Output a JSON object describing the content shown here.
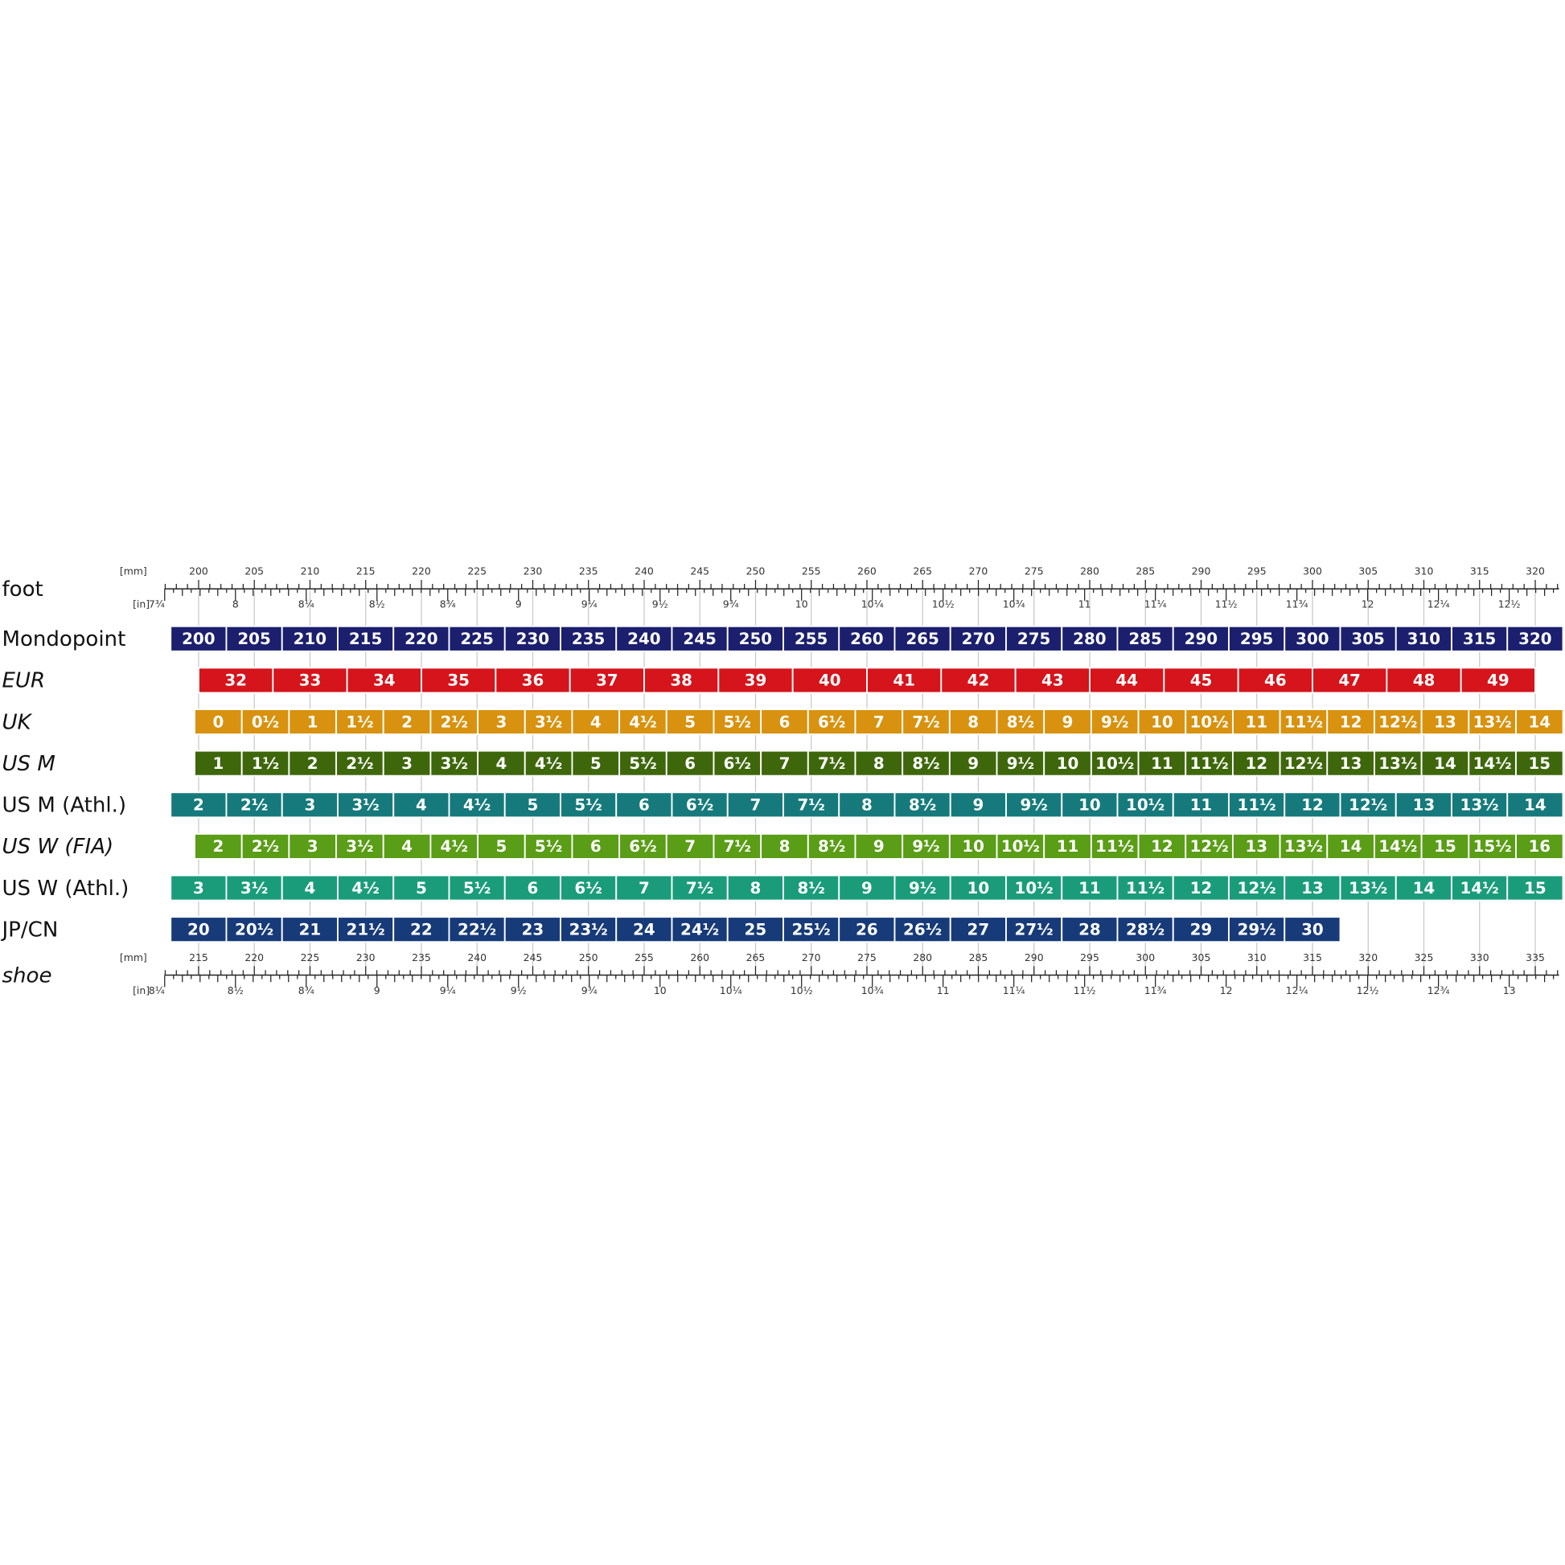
{
  "foot_scale": {
    "label": "foot",
    "mm_unit": "[mm]",
    "in_unit": "[in]",
    "mm_labels": [
      200,
      205,
      210,
      215,
      220,
      225,
      230,
      235,
      240,
      245,
      250,
      255,
      260,
      265,
      270,
      275,
      280,
      285,
      290,
      295,
      300,
      305,
      310,
      315,
      320
    ],
    "in_labels": [
      "7¾",
      8,
      "8¼",
      "8½",
      "8¾",
      9,
      "9¼",
      "9½",
      "9¾",
      10,
      "10¼",
      "10½",
      "10¾",
      11,
      "11¼",
      "11½",
      "11¾",
      12,
      "12¼",
      "12½"
    ]
  },
  "rows": [
    {
      "label": "Mondopoint",
      "color": "#1b1f6e",
      "cells": [
        200,
        205,
        210,
        215,
        220,
        225,
        230,
        235,
        240,
        245,
        250,
        255,
        260,
        265,
        270,
        275,
        280,
        285,
        290,
        295,
        300,
        305,
        310,
        315,
        320
      ]
    },
    {
      "label": "EUR",
      "color": "#d5141b",
      "cells": [
        32,
        33,
        34,
        35,
        36,
        37,
        38,
        39,
        40,
        41,
        42,
        43,
        44,
        45,
        46,
        47,
        48,
        49
      ]
    },
    {
      "label": "UK",
      "color": "#d8920f",
      "cells": [
        0,
        "0½",
        1,
        "1½",
        2,
        "2½",
        3,
        "3½",
        4,
        "4½",
        5,
        "5½",
        6,
        "6½",
        7,
        "7½",
        8,
        "8½",
        9,
        "9½",
        10,
        "10½",
        11,
        "11½",
        12,
        "12½",
        13,
        "13½",
        14
      ]
    },
    {
      "label": "US M",
      "color": "#3e670c",
      "cells": [
        1,
        "1½",
        2,
        "2½",
        3,
        "3½",
        4,
        "4½",
        5,
        "5½",
        6,
        "6½",
        7,
        "7½",
        8,
        "8½",
        9,
        "9½",
        10,
        "10½",
        11,
        "11½",
        12,
        "12½",
        13,
        "13½",
        14,
        "14½",
        15
      ]
    },
    {
      "label": "US M (Athl.)",
      "color": "#167a7c",
      "cells": [
        2,
        "2½",
        3,
        "3½",
        4,
        "4½",
        5,
        "5½",
        6,
        "6½",
        7,
        "7½",
        8,
        "8½",
        9,
        "9½",
        10,
        "10½",
        11,
        "11½",
        12,
        "12½",
        13,
        "13½",
        14
      ]
    },
    {
      "label": "US W (FIA)",
      "color": "#5a9d16",
      "cells": [
        2,
        "2½",
        3,
        "3½",
        4,
        "4½",
        5,
        "5½",
        6,
        "6½",
        7,
        "7½",
        8,
        "8½",
        9,
        "9½",
        10,
        "10½",
        11,
        "11½",
        12,
        "12½",
        13,
        "13½",
        14,
        "14½",
        15,
        "15½",
        16
      ]
    },
    {
      "label": "US W (Athl.)",
      "color": "#1a9c7a",
      "cells": [
        3,
        "3½",
        4,
        "4½",
        5,
        "5½",
        6,
        "6½",
        7,
        "7½",
        8,
        "8½",
        9,
        "9½",
        10,
        "10½",
        11,
        "11½",
        12,
        "12½",
        13,
        "13½",
        14,
        "14½",
        15
      ]
    },
    {
      "label": "JP/CN",
      "color": "#173a78",
      "cells": [
        20,
        "20½",
        21,
        "21½",
        22,
        "22½",
        23,
        "23½",
        24,
        "24½",
        25,
        "25½",
        26,
        "26½",
        27,
        "27½",
        28,
        "28½",
        29,
        "29½",
        30
      ]
    }
  ],
  "shoe_scale": {
    "label": "shoe",
    "mm_unit": "[mm]",
    "in_unit": "[in]",
    "mm_labels": [
      215,
      220,
      225,
      230,
      235,
      240,
      245,
      250,
      255,
      260,
      265,
      270,
      275,
      280,
      285,
      290,
      295,
      300,
      305,
      310,
      315,
      320,
      325,
      330,
      335
    ],
    "in_labels": [
      "8¼",
      "8½",
      "8¾",
      9,
      "9¼",
      "9½",
      "9¾",
      10,
      "10¼",
      "10½",
      "10¾",
      11,
      "11¼",
      "11½",
      "11¾",
      12,
      "12¼",
      "12½",
      "12¾",
      13
    ]
  }
}
